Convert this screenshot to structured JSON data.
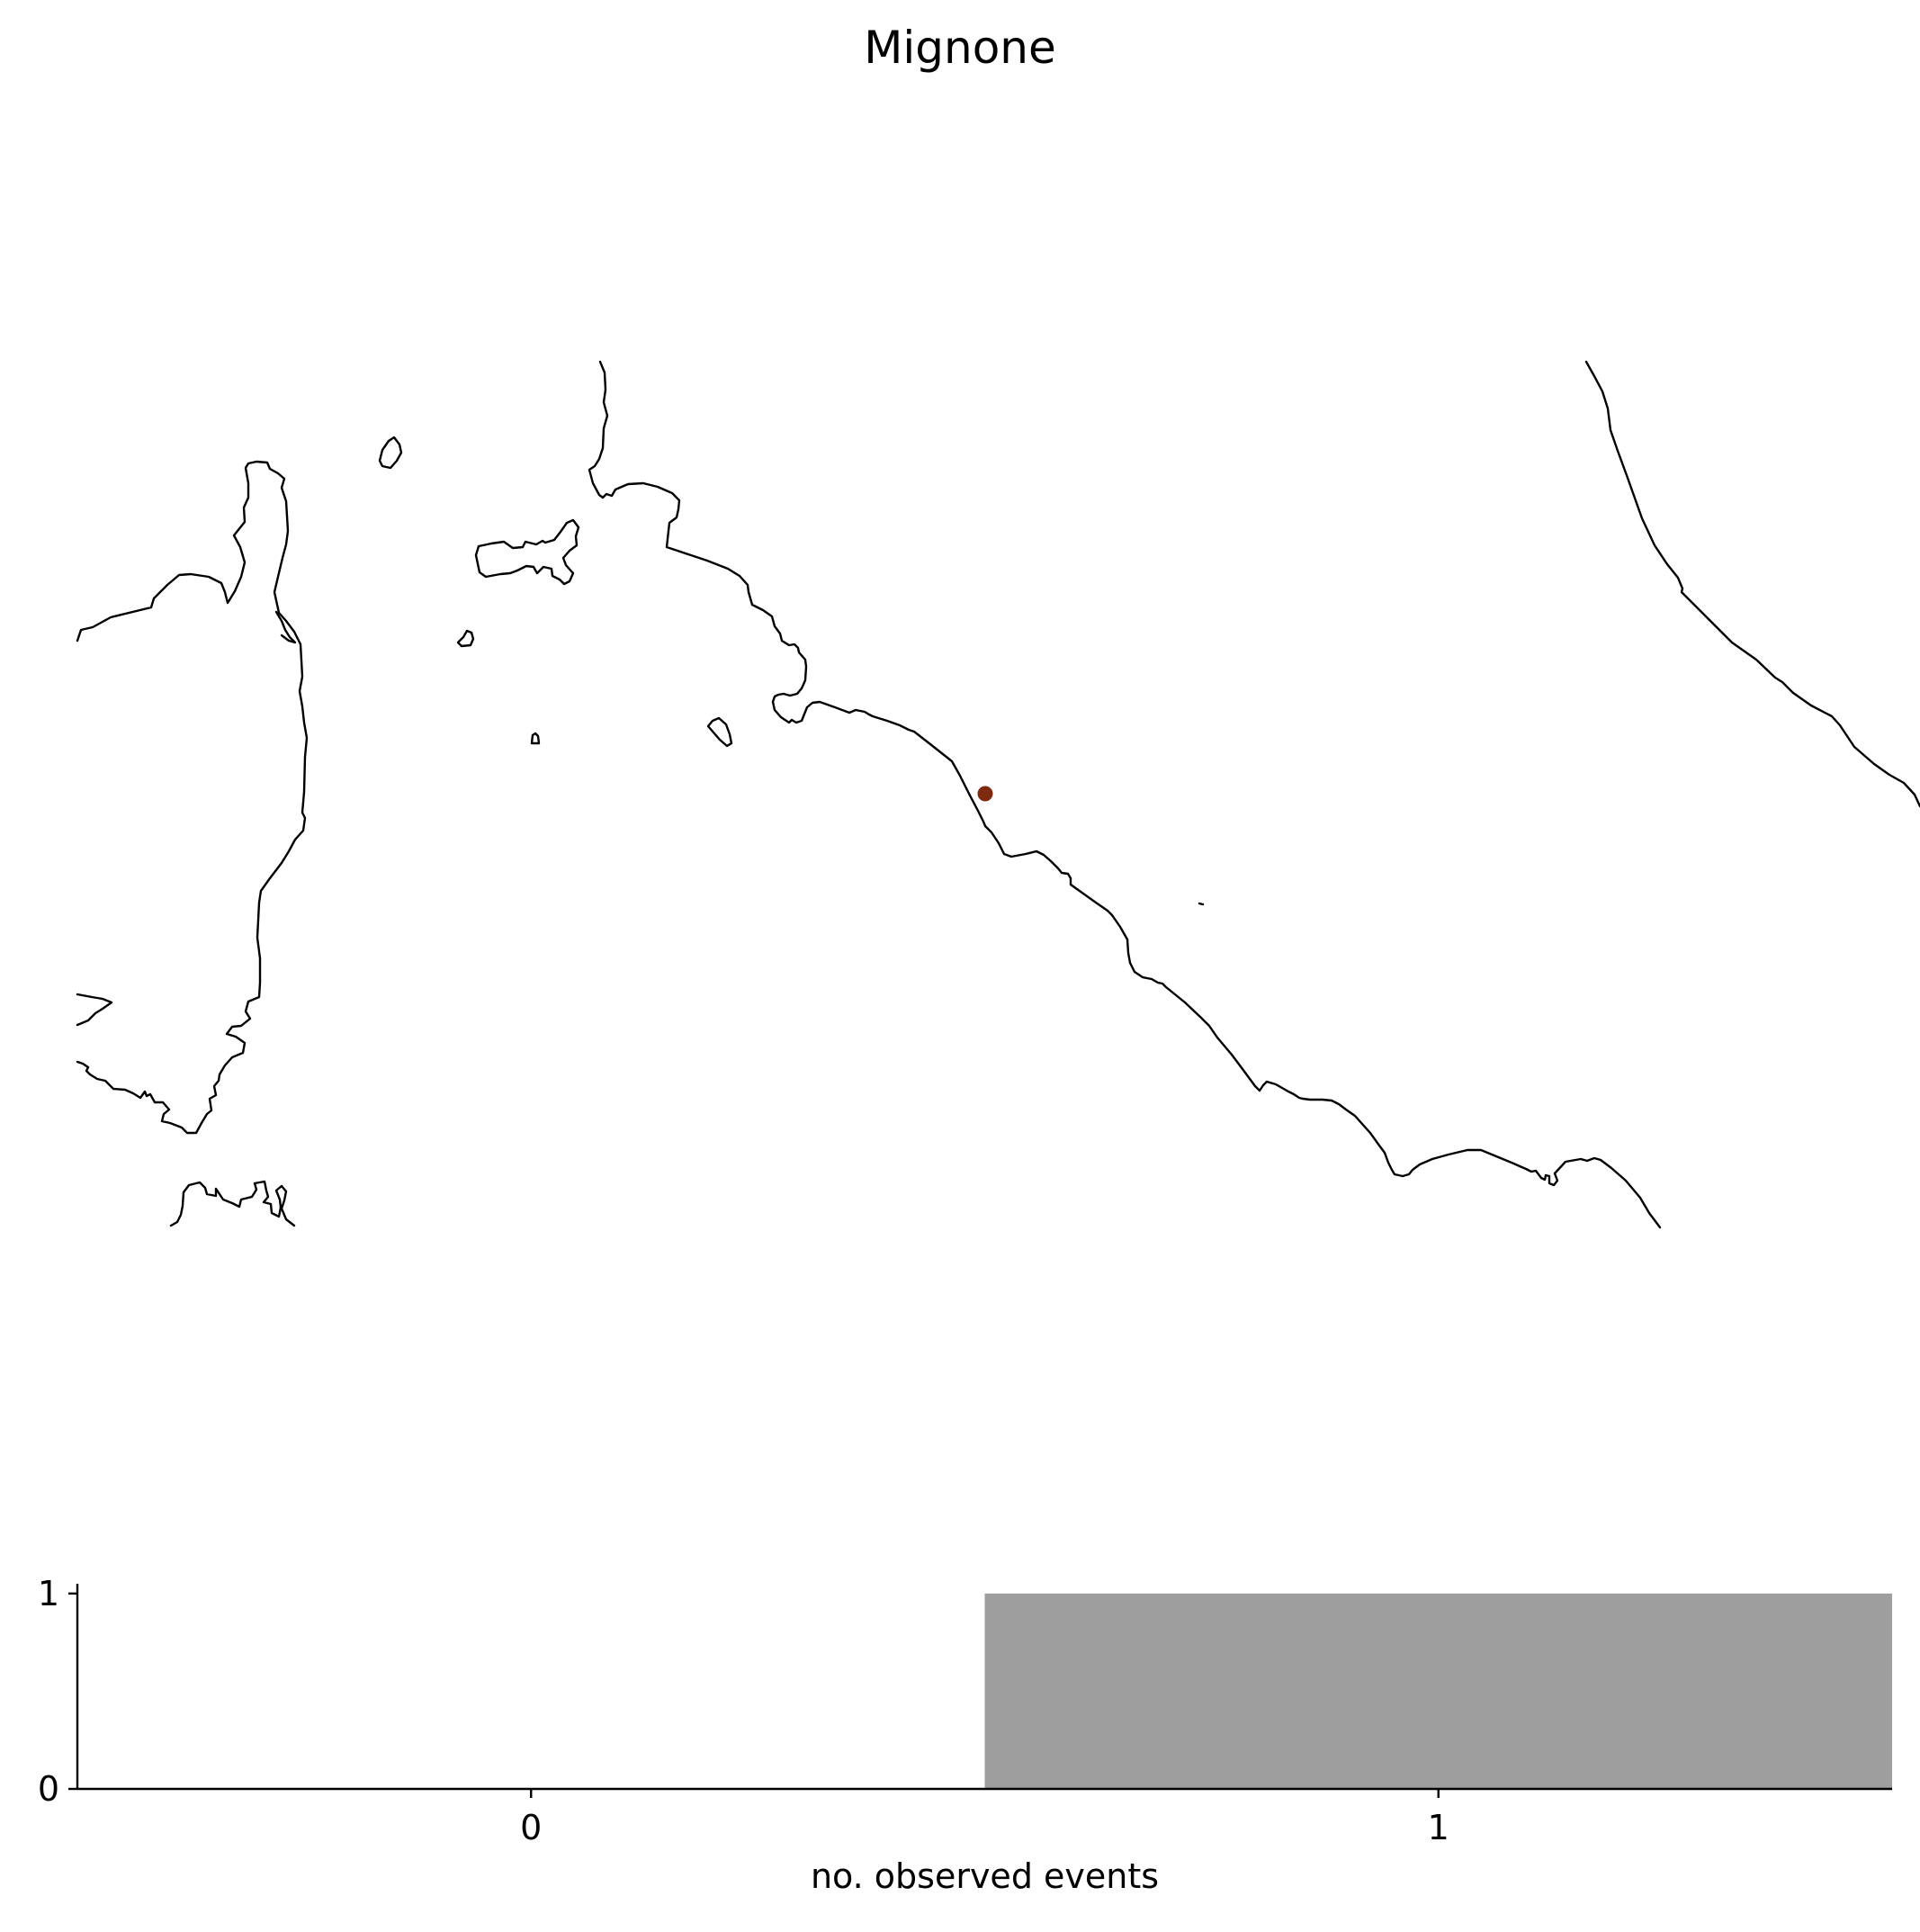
{
  "title": "Mignone",
  "colors": {
    "coastline": "#000000",
    "marker": "#7f2a10",
    "bar": "#9e9e9e"
  },
  "map": {
    "type": "coastline-map",
    "markers": [
      {
        "name": "Mignone",
        "shape": "dot"
      }
    ]
  },
  "chart_data": {
    "type": "bar",
    "categories": [
      "0",
      "1"
    ],
    "values": [
      0,
      1
    ],
    "xlabel": "no. observed events",
    "ylabel": "",
    "xticks": [
      "0",
      "1"
    ],
    "yticks": [
      "0",
      "1"
    ],
    "ylim": [
      0,
      1.05
    ],
    "grid": false,
    "legend": "none"
  }
}
